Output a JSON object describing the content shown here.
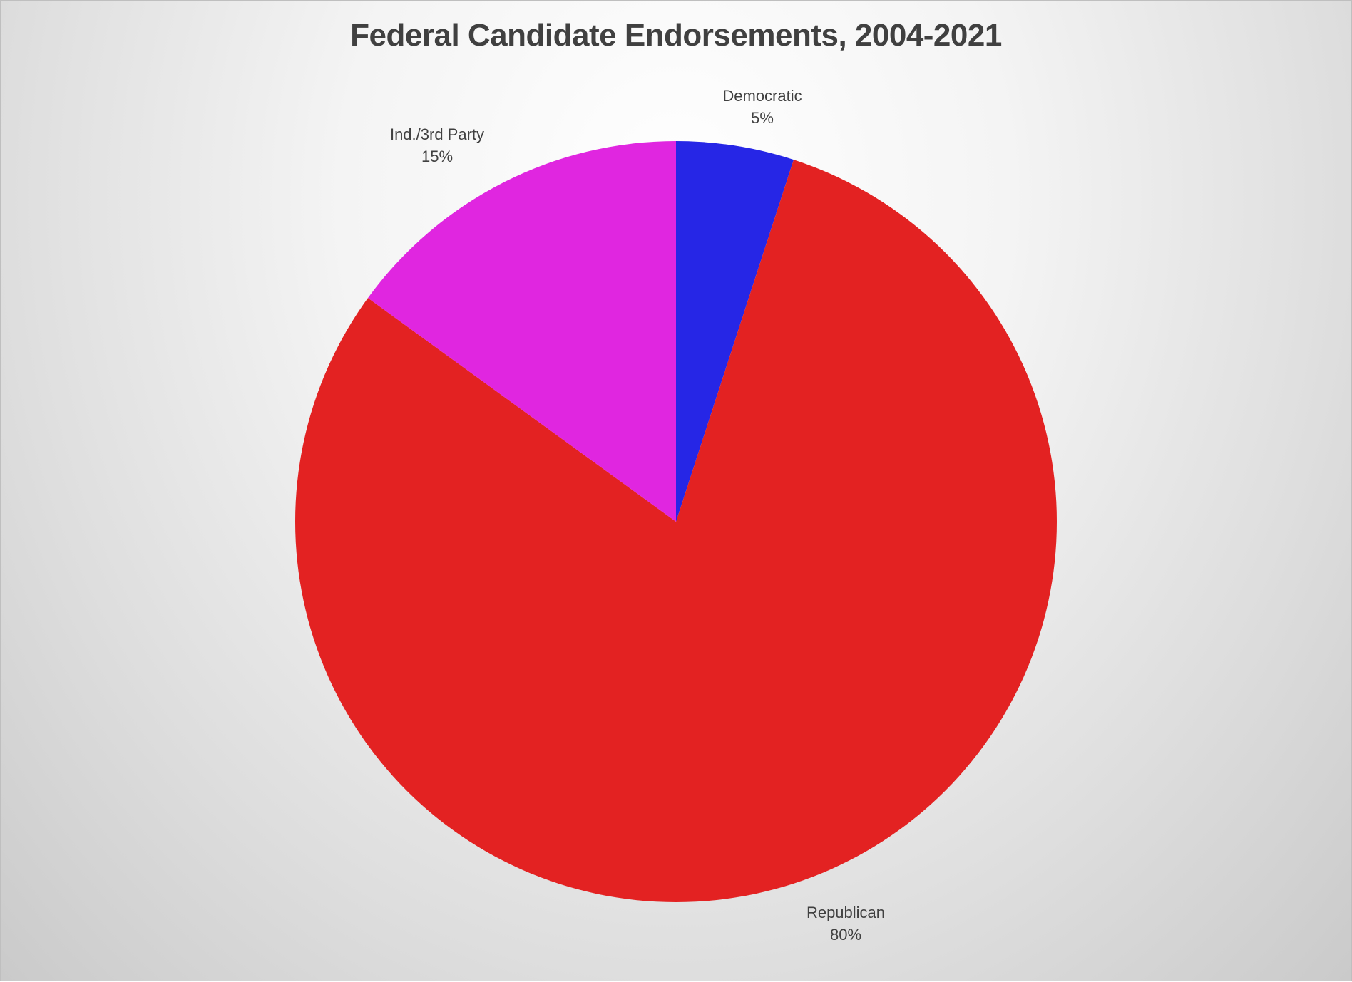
{
  "chart_data": {
    "type": "pie",
    "title": "Federal Candidate Endorsements, 2004-2021",
    "slices": [
      {
        "label": "Democratic",
        "value": 5,
        "value_label": "5%",
        "color": "#2626e6"
      },
      {
        "label": "Republican",
        "value": 80,
        "value_label": "80%",
        "color": "#e32222"
      },
      {
        "label": "Ind./3rd Party",
        "value": 15,
        "value_label": "15%",
        "color": "#e026e0"
      }
    ],
    "start_angle": "12 o'clock, clockwise",
    "legend": "none",
    "data_labels": "outside"
  }
}
